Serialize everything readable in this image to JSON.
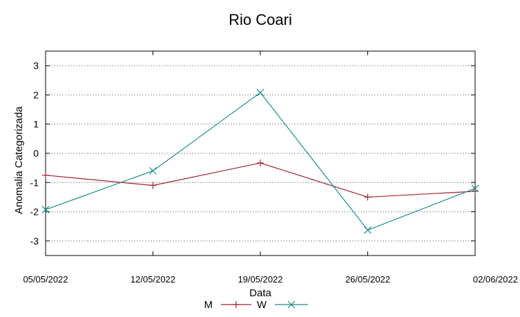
{
  "chart_data": {
    "type": "line",
    "title": "Rio Coari",
    "xlabel": "Data",
    "ylabel": "Anomalia Categorizada",
    "categories": [
      "05/05/2022",
      "12/05/2022",
      "19/05/2022",
      "26/05/2022",
      "02/06/2022"
    ],
    "yticks": [
      "3",
      "2",
      "1",
      "0",
      "-1",
      "-2",
      "-3"
    ],
    "ylim": [
      -3.5,
      3.5
    ],
    "grid": true,
    "legend_position": "bottom",
    "series": [
      {
        "name": "M",
        "color": "#a0222f",
        "marker": "plus",
        "values": [
          -0.75,
          -1.1,
          -0.33,
          -1.5,
          -1.3
        ]
      },
      {
        "name": "W",
        "color": "#1a8a8c",
        "marker": "cross",
        "values": [
          -1.93,
          -0.6,
          2.08,
          -2.63,
          -1.2
        ]
      }
    ]
  }
}
